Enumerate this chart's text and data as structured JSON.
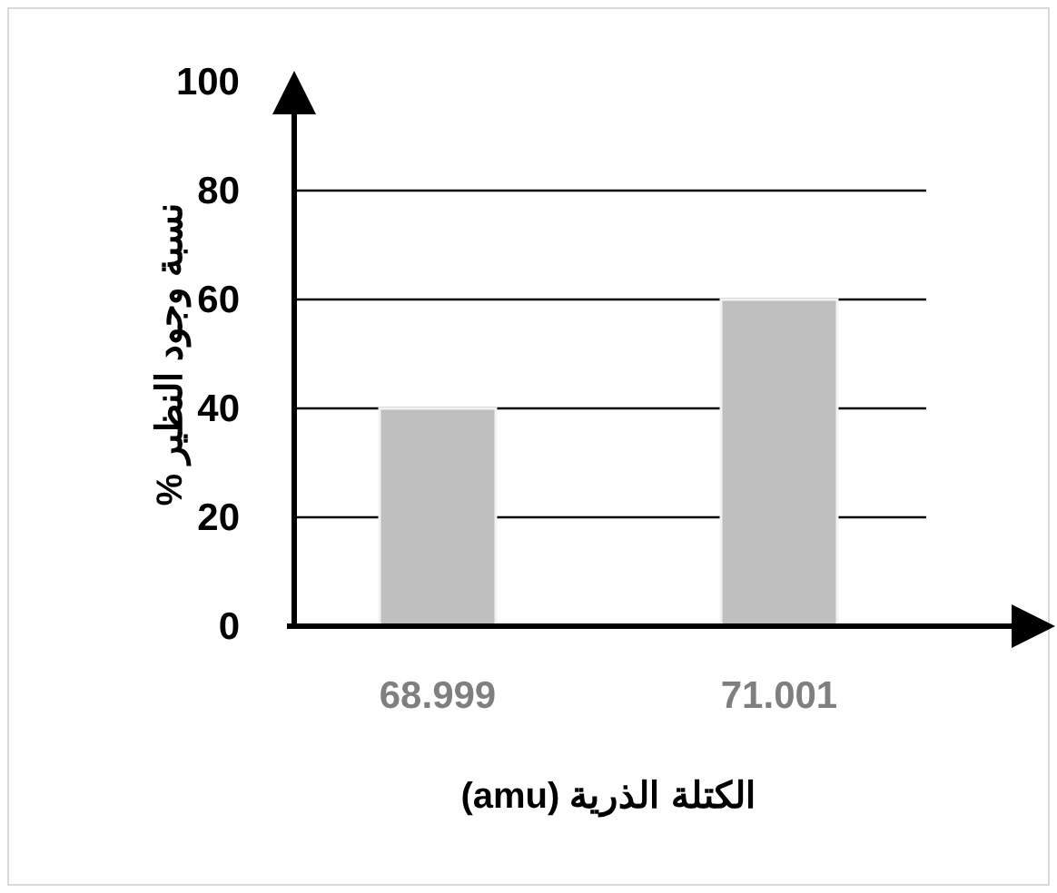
{
  "chart_data": {
    "type": "bar",
    "categories": [
      "68.999",
      "71.001"
    ],
    "values": [
      40,
      60
    ],
    "color": "#bfbfbf",
    "ylim": [
      0,
      100
    ],
    "yticks": [
      0,
      20,
      40,
      60,
      80,
      100
    ],
    "grid": "y",
    "xlabel": "الكتلة الذرية (amu)",
    "ylabel": "نسبة وجود النظير %"
  }
}
